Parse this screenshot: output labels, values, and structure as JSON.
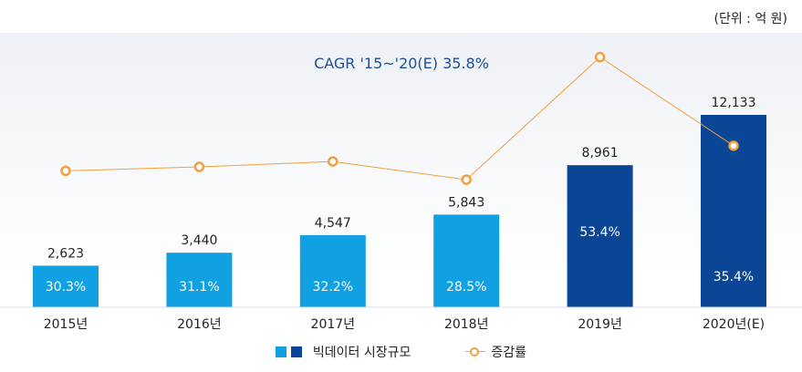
{
  "unit": "(단위 : 억 원)",
  "chart_data": {
    "type": "bar",
    "title": "CAGR '15~'20(E)  35.8%",
    "categories": [
      "2015년",
      "2016년",
      "2017년",
      "2018년",
      "2019년",
      "2020년(E)"
    ],
    "series": [
      {
        "name": "빅데이터 시장규모",
        "type": "bar",
        "values": [
          2623,
          3440,
          4547,
          5843,
          8961,
          12133
        ]
      },
      {
        "name": "증감률",
        "type": "line",
        "values": [
          30.3,
          31.1,
          32.2,
          28.5,
          53.4,
          35.4
        ]
      }
    ],
    "value_labels": [
      "2,623",
      "3,440",
      "4,547",
      "5,843",
      "8,961",
      "12,133"
    ],
    "pct_labels": [
      "30.3%",
      "31.1%",
      "32.2%",
      "28.5%",
      "53.4%",
      "35.4%"
    ],
    "colors": {
      "bar_light": "#11a0e2",
      "bar_dark": "#0a4596",
      "line": "#f0a040",
      "cagr": "#1f4e9a"
    },
    "dark_from_index": 4
  }
}
